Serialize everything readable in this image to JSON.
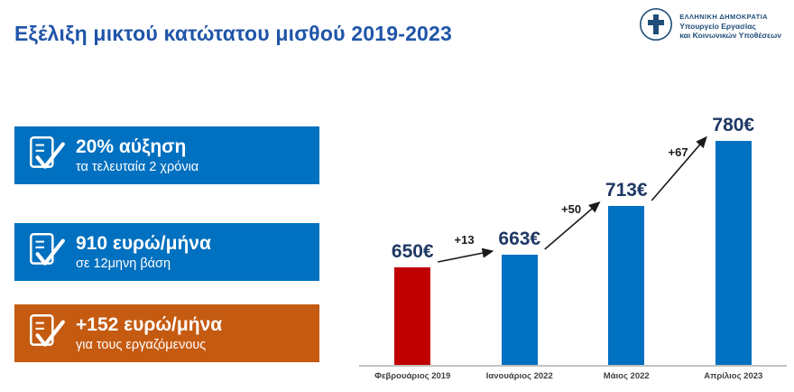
{
  "header": {
    "title": "Εξέλιξη μικτού κατώτατου μισθού 2019-2023",
    "logo": {
      "line1": "ΕΛΛΗΝΙΚΗ ΔΗΜΟΚΡΑΤΙΑ",
      "line2": "Υπουργείο Εργασίας",
      "line3": "και Κοινωνικών Υποθέσεων"
    }
  },
  "callouts": [
    {
      "title": "20% αύξηση",
      "subtitle": "τα τελευταία 2 χρόνια",
      "color": "#0070c0"
    },
    {
      "title": "910 ευρώ/μήνα",
      "subtitle": "σε 12μηνη βάση",
      "color": "#0070c0"
    },
    {
      "title": "+152 ευρώ/μήνα",
      "subtitle": "για τους εργαζόμενους",
      "color": "#c55a11"
    }
  ],
  "chart_data": {
    "type": "bar",
    "categories": [
      "Φεβρουάριος 2019",
      "Ιανουάριος 2022",
      "Μάιος 2022",
      "Απρίλιος 2023"
    ],
    "values": [
      650,
      663,
      713,
      780
    ],
    "value_labels": [
      "650€",
      "663€",
      "713€",
      "780€"
    ],
    "bar_colors": [
      "#c00000",
      "#0070c0",
      "#0070c0",
      "#0070c0"
    ],
    "increments": [
      "+13",
      "+50",
      "+67"
    ],
    "title": "",
    "xlabel": "",
    "ylabel": "",
    "ylim": [
      550,
      800
    ],
    "grid": false,
    "legend": false,
    "colors": {
      "accent_blue": "#0070c0",
      "accent_red": "#c00000",
      "accent_orange": "#c55a11",
      "value_label": "#1f3864",
      "title_blue": "#1f55a8"
    }
  }
}
